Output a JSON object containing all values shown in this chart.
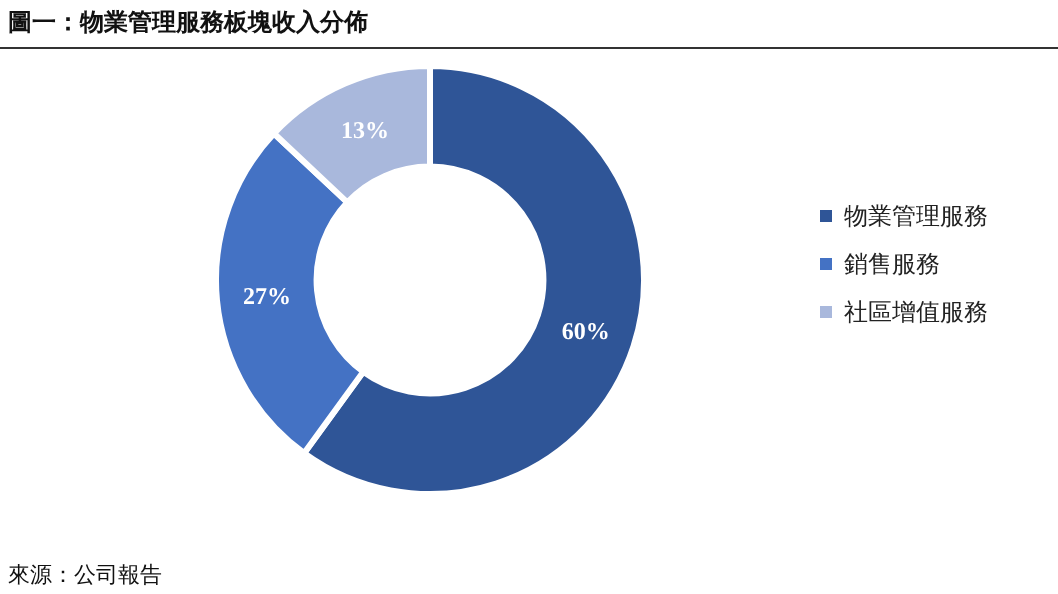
{
  "chart_data": {
    "type": "donut",
    "title": "圖一：物業管理服務板塊收入分佈",
    "categories": [
      "物業管理服務",
      "銷售服務",
      "社區增值服務"
    ],
    "values": [
      60,
      27,
      13
    ],
    "colors": [
      "#2f5597",
      "#4472c4",
      "#a9b8dc"
    ],
    "value_labels": [
      "60%",
      "27%",
      "13%"
    ],
    "legend": "right",
    "annotations": [
      "來源：公司報告"
    ]
  }
}
